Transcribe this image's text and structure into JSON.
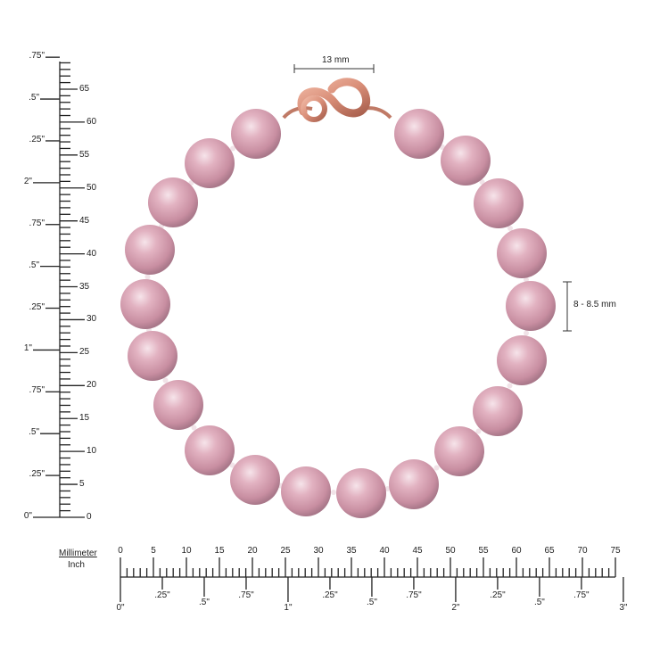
{
  "dimensions": {
    "clasp_width": "13 mm",
    "pearl_size": "8 - 8.5 mm"
  },
  "left_ruler": {
    "mm_labels": [
      "0",
      "5",
      "10",
      "15",
      "20",
      "25",
      "30",
      "35",
      "40",
      "45",
      "50",
      "55",
      "60",
      "65"
    ],
    "inch_labels": [
      "0\"",
      ".25\"",
      ".5\"",
      ".75\"",
      "1\"",
      ".25\"",
      ".5\"",
      ".75\"",
      "2\"",
      ".25\"",
      ".5\"",
      ".75\""
    ]
  },
  "bottom_ruler": {
    "unit_top": "Millimeter",
    "unit_bottom": "Inch",
    "mm_labels": [
      "0",
      "5",
      "10",
      "15",
      "20",
      "25",
      "30",
      "35",
      "40",
      "45",
      "50",
      "55",
      "60",
      "65",
      "70",
      "75"
    ],
    "inch_labels": [
      "0\"",
      ".25\"",
      ".5\"",
      ".75\"",
      "1\"",
      ".25\"",
      ".5\"",
      ".75\"",
      "2\"",
      ".25\"",
      ".5\"",
      ".75\"",
      "3\""
    ]
  },
  "colors": {
    "pearl": "#d9a3b3",
    "pearl_highlight": "#f6e4ea",
    "pearl_shadow": "#b07a8c",
    "clasp": "#d98e78",
    "ruler": "#222222"
  },
  "pearl_count": 20
}
